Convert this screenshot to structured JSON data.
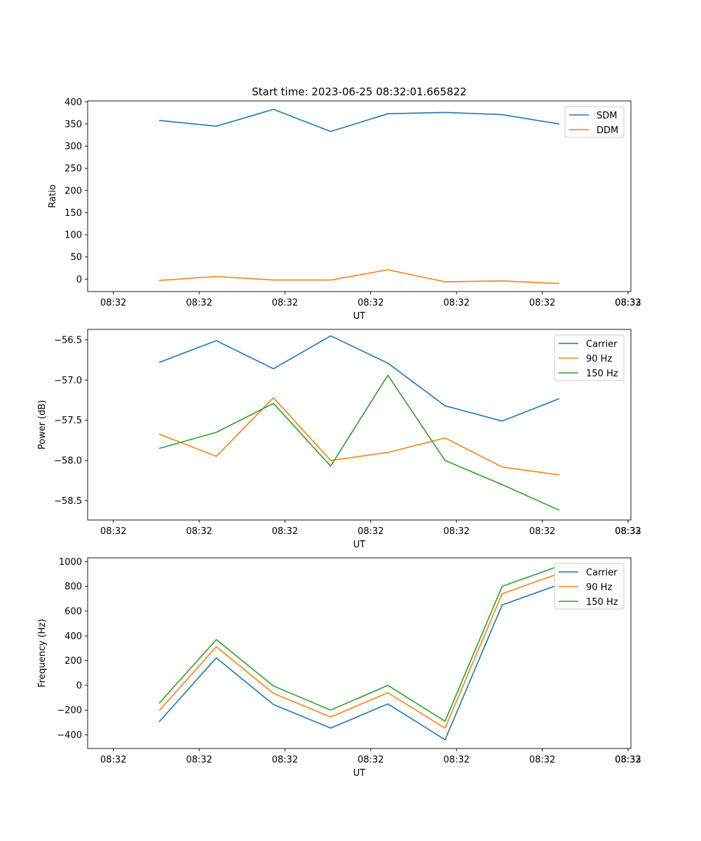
{
  "figure": {
    "title": "Start time: 2023-06-25 08:32:01.665822"
  },
  "colors": {
    "blue": "#1f77b4",
    "orange": "#ff7f0e",
    "green": "#2ca02c"
  },
  "chart_data": [
    {
      "type": "line",
      "xlabel": "UT",
      "ylabel": "Ratio",
      "x_tick_labels": [
        "08:32",
        "08:32",
        "08:32",
        "08:32",
        "08:32",
        "08:32",
        "08:32"
      ],
      "x_tick_extra": "08:33",
      "y_ticks": [
        0,
        50,
        100,
        150,
        200,
        250,
        300,
        350,
        400
      ],
      "y_tick_labels": [
        "0",
        "50",
        "100",
        "150",
        "200",
        "250",
        "300",
        "350",
        "400"
      ],
      "ylim": [
        -28,
        402
      ],
      "legend": "top-right",
      "series": [
        {
          "name": "SDM",
          "color": "blue",
          "values": [
            358,
            345,
            383,
            333,
            373,
            376,
            371,
            350
          ]
        },
        {
          "name": "DDM",
          "color": "orange",
          "values": [
            -3,
            6,
            -2,
            -2,
            21,
            -6,
            -4,
            -10
          ]
        }
      ]
    },
    {
      "type": "line",
      "xlabel": "UT",
      "ylabel": "Power (dB)",
      "x_tick_labels": [
        "08:32",
        "08:32",
        "08:32",
        "08:32",
        "08:32",
        "08:32",
        "08:32"
      ],
      "x_tick_extra": "08:33",
      "y_ticks": [
        -58.5,
        -58.0,
        -57.5,
        -57.0,
        -56.5
      ],
      "y_tick_labels": [
        "−58.5",
        "−58.0",
        "−57.5",
        "−57.0",
        "−56.5"
      ],
      "ylim": [
        -58.74,
        -56.37
      ],
      "legend": "top-right",
      "series": [
        {
          "name": "Carrier",
          "color": "blue",
          "values": [
            -56.78,
            -56.51,
            -56.86,
            -56.45,
            -56.79,
            -57.32,
            -57.51,
            -57.23
          ]
        },
        {
          "name": "90 Hz",
          "color": "orange",
          "values": [
            -57.67,
            -57.95,
            -57.22,
            -58.0,
            -57.9,
            -57.72,
            -58.08,
            -58.18
          ]
        },
        {
          "name": "150 Hz",
          "color": "green",
          "values": [
            -57.85,
            -57.65,
            -57.29,
            -58.07,
            -56.94,
            -58.0,
            -58.3,
            -58.62
          ]
        }
      ]
    },
    {
      "type": "line",
      "xlabel": "UT",
      "ylabel": "Frequency (Hz)",
      "x_tick_labels": [
        "08:32",
        "08:32",
        "08:32",
        "08:32",
        "08:32",
        "08:32",
        "08:32"
      ],
      "x_tick_extra": "08:33",
      "y_ticks": [
        -400,
        -200,
        0,
        200,
        400,
        600,
        800,
        1000
      ],
      "y_tick_labels": [
        "−400",
        "−200",
        "0",
        "200",
        "400",
        "600",
        "800",
        "1000"
      ],
      "ylim": [
        -510,
        1030
      ],
      "legend": "top-right",
      "series": [
        {
          "name": "Carrier",
          "color": "blue",
          "values": [
            -295,
            222,
            -155,
            -345,
            -150,
            -440,
            650,
            815
          ]
        },
        {
          "name": "90 Hz",
          "color": "orange",
          "values": [
            -205,
            312,
            -65,
            -255,
            -60,
            -345,
            740,
            905
          ]
        },
        {
          "name": "150 Hz",
          "color": "green",
          "values": [
            -145,
            370,
            -5,
            -200,
            0,
            -290,
            800,
            965
          ]
        }
      ]
    }
  ]
}
